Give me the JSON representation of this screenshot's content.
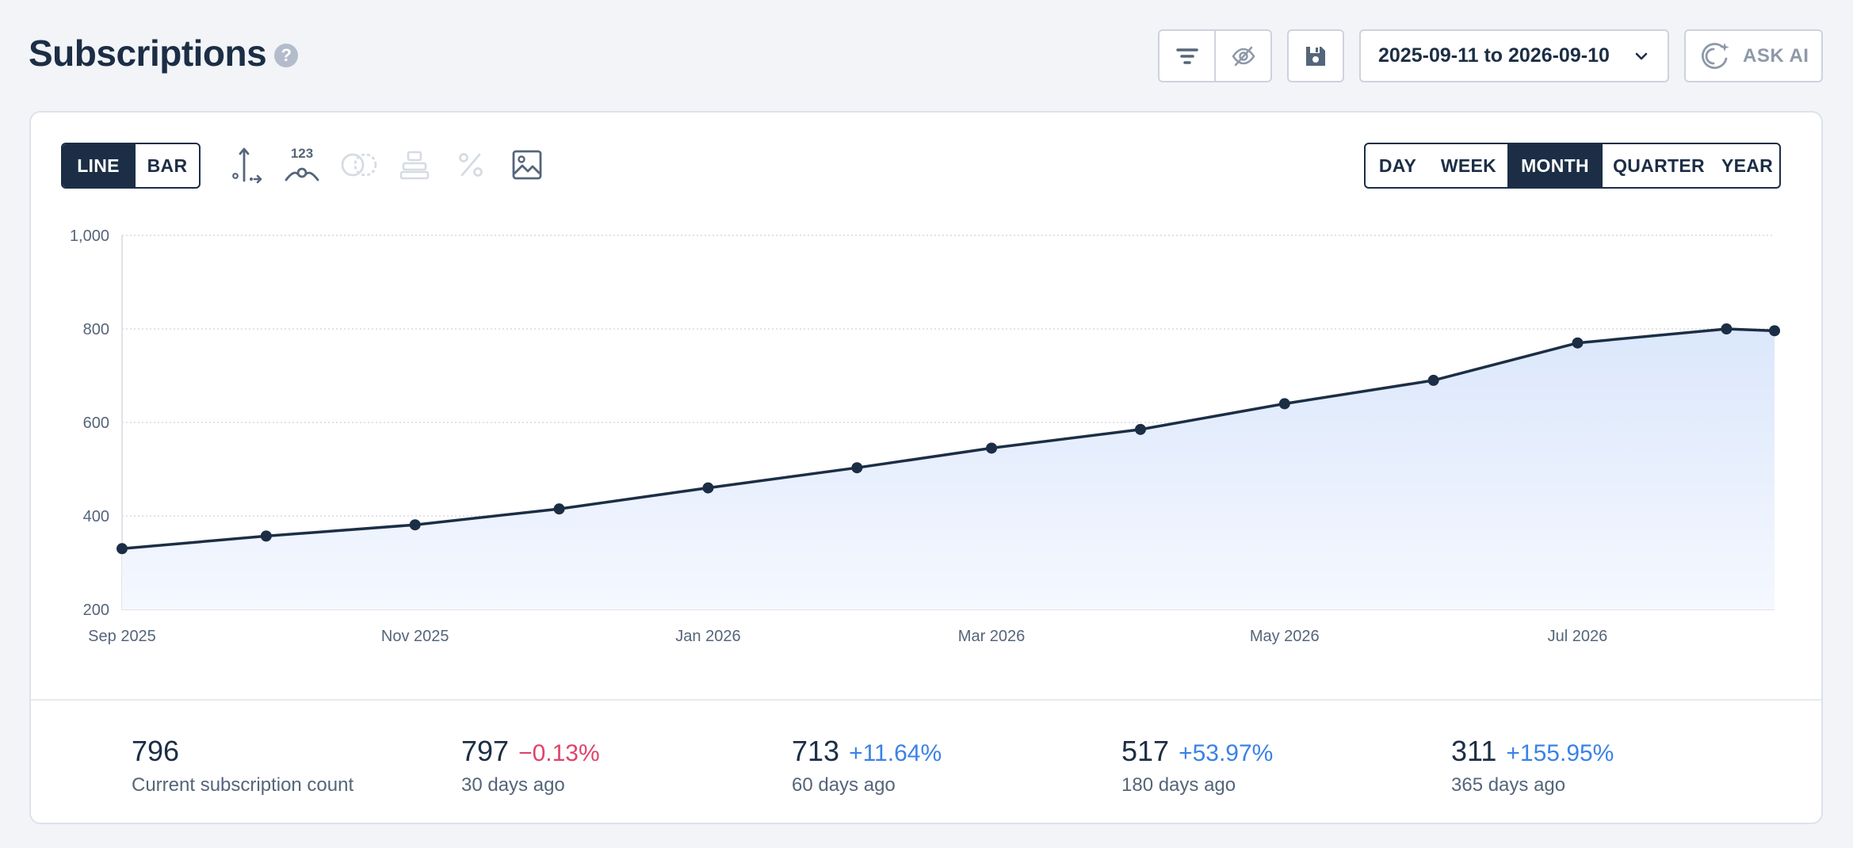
{
  "header": {
    "title": "Subscriptions",
    "help_glyph": "?"
  },
  "toolbar": {
    "date_range": "2025-09-11 to 2026-09-10",
    "ask_ai_label": "ASK AI"
  },
  "chart_controls": {
    "chart_types": [
      {
        "label": "LINE",
        "active": true
      },
      {
        "label": "BAR",
        "active": false
      }
    ],
    "periods": [
      {
        "label": "DAY",
        "active": false
      },
      {
        "label": "WEEK",
        "active": false
      },
      {
        "label": "MONTH",
        "active": true
      },
      {
        "label": "QUARTER",
        "active": false
      },
      {
        "label": "YEAR",
        "active": false
      }
    ],
    "data_labels_icon_text": "123"
  },
  "chart_data": {
    "type": "area",
    "x": [
      "Sep 2025",
      "Oct 2025",
      "Nov 2025",
      "Dec 2025",
      "Jan 2026",
      "Feb 2026",
      "Mar 2026",
      "Apr 2026",
      "May 2026",
      "Jun 2026",
      "Jul 2026",
      "Aug 2026",
      "Sep 2026"
    ],
    "x_day_offsets": [
      0,
      30,
      61,
      91,
      122,
      153,
      181,
      212,
      242,
      273,
      303,
      334,
      344
    ],
    "values": [
      330,
      357,
      381,
      415,
      460,
      503,
      545,
      585,
      640,
      690,
      770,
      800,
      796
    ],
    "x_tick_labels": [
      "Sep 2025",
      "Nov 2025",
      "Jan 2026",
      "Mar 2026",
      "May 2026",
      "Jul 2026"
    ],
    "x_tick_offsets": [
      0,
      61,
      122,
      181,
      242,
      303
    ],
    "y_ticks": [
      "1,000",
      "800",
      "600",
      "400",
      "200"
    ],
    "ylim": [
      200,
      1000
    ],
    "grid": true,
    "colors": {
      "line": "#1c2e45",
      "fill_top": "#dbe7fb",
      "fill_bottom": "#f5f8ff"
    }
  },
  "stats": [
    {
      "value": "796",
      "change": "",
      "label": "Current subscription count"
    },
    {
      "value": "797",
      "change": "−0.13%",
      "trend": "negative",
      "label": "30 days ago"
    },
    {
      "value": "713",
      "change": "+11.64%",
      "trend": "positive",
      "label": "60 days ago"
    },
    {
      "value": "517",
      "change": "+53.97%",
      "trend": "positive",
      "label": "180 days ago"
    },
    {
      "value": "311",
      "change": "+155.95%",
      "trend": "positive",
      "label": "365 days ago"
    }
  ]
}
